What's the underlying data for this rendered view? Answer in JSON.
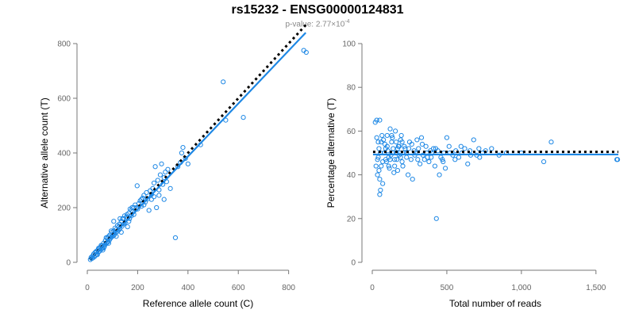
{
  "title": "rs15232 - ENSG00000124831",
  "subtitle": {
    "prefix": "p-value: 2.77×10",
    "exponent": "-4"
  },
  "chart_data": [
    {
      "type": "scatter",
      "xlabel": "Reference allele count (C)",
      "ylabel": "Alternative allele count (T)",
      "xlim": [
        0,
        880
      ],
      "ylim": [
        0,
        800
      ],
      "xticks": [
        0,
        200,
        400,
        600,
        800
      ],
      "yticks": [
        0,
        200,
        400,
        600,
        800
      ],
      "xtick_labels": [
        "0",
        "200",
        "400",
        "600",
        "800"
      ],
      "ytick_labels": [
        "0",
        "200",
        "400",
        "600",
        "800"
      ],
      "fit_line": [
        [
          10,
          10
        ],
        [
          868,
          840
        ]
      ],
      "reference_line": [
        [
          10,
          10
        ],
        [
          868,
          868
        ]
      ],
      "points": [
        [
          12,
          10
        ],
        [
          15,
          18
        ],
        [
          18,
          14
        ],
        [
          20,
          22
        ],
        [
          22,
          16
        ],
        [
          25,
          30
        ],
        [
          28,
          20
        ],
        [
          30,
          35
        ],
        [
          33,
          26
        ],
        [
          35,
          40
        ],
        [
          38,
          30
        ],
        [
          40,
          28
        ],
        [
          42,
          45
        ],
        [
          45,
          38
        ],
        [
          48,
          50
        ],
        [
          50,
          42
        ],
        [
          52,
          55
        ],
        [
          55,
          48
        ],
        [
          58,
          60
        ],
        [
          60,
          52
        ],
        [
          62,
          45
        ],
        [
          65,
          70
        ],
        [
          68,
          58
        ],
        [
          70,
          65
        ],
        [
          72,
          80
        ],
        [
          75,
          68
        ],
        [
          78,
          72
        ],
        [
          80,
          90
        ],
        [
          82,
          75
        ],
        [
          85,
          95
        ],
        [
          88,
          82
        ],
        [
          90,
          100
        ],
        [
          92,
          88
        ],
        [
          95,
          92
        ],
        [
          98,
          110
        ],
        [
          100,
          95
        ],
        [
          105,
          115
        ],
        [
          108,
          102
        ],
        [
          110,
          125
        ],
        [
          112,
          108
        ],
        [
          115,
          120
        ],
        [
          118,
          112
        ],
        [
          120,
          135
        ],
        [
          125,
          118
        ],
        [
          128,
          140
        ],
        [
          130,
          125
        ],
        [
          135,
          150
        ],
        [
          138,
          132
        ],
        [
          140,
          160
        ],
        [
          145,
          140
        ],
        [
          148,
          170
        ],
        [
          150,
          145
        ],
        [
          155,
          165
        ],
        [
          158,
          175
        ],
        [
          160,
          130
        ],
        [
          165,
          180
        ],
        [
          168,
          160
        ],
        [
          170,
          195
        ],
        [
          175,
          170
        ],
        [
          178,
          200
        ],
        [
          180,
          185
        ],
        [
          185,
          175
        ],
        [
          190,
          210
        ],
        [
          195,
          200
        ],
        [
          198,
          280
        ],
        [
          200,
          195
        ],
        [
          205,
          215
        ],
        [
          210,
          225
        ],
        [
          215,
          205
        ],
        [
          220,
          235
        ],
        [
          225,
          245
        ],
        [
          230,
          220
        ],
        [
          235,
          255
        ],
        [
          240,
          232
        ],
        [
          245,
          190
        ],
        [
          250,
          262
        ],
        [
          255,
          248
        ],
        [
          260,
          270
        ],
        [
          265,
          240
        ],
        [
          270,
          350
        ],
        [
          275,
          200
        ],
        [
          280,
          300
        ],
        [
          285,
          265
        ],
        [
          290,
          320
        ],
        [
          295,
          360
        ],
        [
          300,
          285
        ],
        [
          305,
          310
        ],
        [
          310,
          330
        ],
        [
          315,
          295
        ],
        [
          320,
          340
        ],
        [
          330,
          270
        ],
        [
          350,
          90
        ],
        [
          360,
          350
        ],
        [
          370,
          365
        ],
        [
          375,
          400
        ],
        [
          380,
          420
        ],
        [
          390,
          380
        ],
        [
          400,
          360
        ],
        [
          450,
          430
        ],
        [
          540,
          660
        ],
        [
          550,
          520
        ],
        [
          620,
          530
        ],
        [
          860,
          775
        ],
        [
          870,
          768
        ],
        [
          35,
          36
        ],
        [
          45,
          52
        ],
        [
          55,
          62
        ],
        [
          65,
          52
        ],
        [
          75,
          90
        ],
        [
          85,
          70
        ],
        [
          95,
          115
        ],
        [
          105,
          98
        ],
        [
          125,
          130
        ],
        [
          135,
          110
        ],
        [
          145,
          160
        ],
        [
          165,
          150
        ],
        [
          175,
          190
        ],
        [
          185,
          200
        ],
        [
          215,
          230
        ],
        [
          225,
          210
        ],
        [
          255,
          230
        ],
        [
          265,
          290
        ],
        [
          285,
          245
        ],
        [
          305,
          230
        ],
        [
          105,
          150
        ],
        [
          115,
          95
        ],
        [
          130,
          160
        ]
      ]
    },
    {
      "type": "scatter",
      "xlabel": "Total number of reads",
      "ylabel": "Percentage alternative (T)",
      "xlim": [
        0,
        1650
      ],
      "ylim": [
        0,
        100
      ],
      "xticks": [
        0,
        500,
        1000,
        1500
      ],
      "yticks": [
        0,
        20,
        40,
        60,
        80,
        100
      ],
      "xtick_labels": [
        "0",
        "500",
        "1,000",
        "1,500"
      ],
      "ytick_labels": [
        "0",
        "20",
        "40",
        "60",
        "80",
        "100"
      ],
      "fit_line": [
        [
          5,
          49.3
        ],
        [
          1650,
          49.3
        ]
      ],
      "reference_line": [
        [
          5,
          50.5
        ],
        [
          1650,
          50.5
        ]
      ],
      "points": [
        [
          20,
          64
        ],
        [
          30,
          65
        ],
        [
          40,
          48
        ],
        [
          50,
          65
        ],
        [
          60,
          55
        ],
        [
          45,
          42
        ],
        [
          35,
          40
        ],
        [
          55,
          33
        ],
        [
          50,
          31
        ],
        [
          70,
          46
        ],
        [
          80,
          50
        ],
        [
          90,
          52
        ],
        [
          100,
          58
        ],
        [
          110,
          48
        ],
        [
          120,
          61
        ],
        [
          130,
          55
        ],
        [
          140,
          52
        ],
        [
          150,
          44
        ],
        [
          160,
          50
        ],
        [
          170,
          52
        ],
        [
          180,
          49
        ],
        [
          190,
          56
        ],
        [
          200,
          46
        ],
        [
          210,
          50
        ],
        [
          220,
          52
        ],
        [
          230,
          48
        ],
        [
          240,
          40
        ],
        [
          250,
          55
        ],
        [
          260,
          47
        ],
        [
          270,
          38
        ],
        [
          280,
          51
        ],
        [
          290,
          50
        ],
        [
          300,
          56
        ],
        [
          310,
          52
        ],
        [
          320,
          45
        ],
        [
          330,
          57
        ],
        [
          340,
          49
        ],
        [
          350,
          47
        ],
        [
          360,
          53
        ],
        [
          370,
          48
        ],
        [
          380,
          46
        ],
        [
          390,
          51
        ],
        [
          400,
          50
        ],
        [
          410,
          52
        ],
        [
          420,
          44
        ],
        [
          430,
          20
        ],
        [
          440,
          51
        ],
        [
          450,
          40
        ],
        [
          460,
          48
        ],
        [
          470,
          47
        ],
        [
          480,
          50
        ],
        [
          490,
          43
        ],
        [
          500,
          57
        ],
        [
          520,
          50
        ],
        [
          540,
          49
        ],
        [
          560,
          51
        ],
        [
          580,
          48
        ],
        [
          600,
          50
        ],
        [
          620,
          52
        ],
        [
          640,
          45
        ],
        [
          660,
          49
        ],
        [
          680,
          56
        ],
        [
          700,
          49
        ],
        [
          720,
          48
        ],
        [
          740,
          50
        ],
        [
          760,
          51
        ],
        [
          800,
          52
        ],
        [
          850,
          49
        ],
        [
          900,
          50
        ],
        [
          1000,
          50
        ],
        [
          1150,
          46
        ],
        [
          1200,
          55
        ],
        [
          1640,
          47
        ],
        [
          1645,
          47
        ],
        [
          25,
          44
        ],
        [
          35,
          47
        ],
        [
          45,
          52
        ],
        [
          55,
          50
        ],
        [
          65,
          58
        ],
        [
          75,
          56
        ],
        [
          85,
          54
        ],
        [
          95,
          46
        ],
        [
          105,
          51
        ],
        [
          115,
          43
        ],
        [
          125,
          49
        ],
        [
          135,
          57
        ],
        [
          145,
          41
        ],
        [
          155,
          60
        ],
        [
          165,
          47
        ],
        [
          175,
          53
        ],
        [
          185,
          50
        ],
        [
          195,
          58
        ],
        [
          205,
          44
        ],
        [
          215,
          53
        ],
        [
          230,
          50
        ],
        [
          245,
          52
        ],
        [
          265,
          54
        ],
        [
          285,
          49
        ],
        [
          305,
          47
        ],
        [
          335,
          54
        ],
        [
          365,
          50
        ],
        [
          395,
          48
        ],
        [
          425,
          52
        ],
        [
          475,
          46
        ],
        [
          515,
          53
        ],
        [
          555,
          47
        ],
        [
          595,
          53
        ],
        [
          655,
          51
        ],
        [
          715,
          52
        ],
        [
          30,
          57
        ],
        [
          40,
          55
        ],
        [
          50,
          38
        ],
        [
          60,
          44
        ],
        [
          70,
          36
        ],
        [
          80,
          50
        ],
        [
          90,
          47
        ],
        [
          100,
          53
        ],
        [
          110,
          44
        ],
        [
          120,
          47
        ],
        [
          130,
          58
        ],
        [
          140,
          50
        ],
        [
          150,
          47
        ],
        [
          160,
          55
        ],
        [
          170,
          42
        ],
        [
          180,
          53
        ],
        [
          190,
          48
        ],
        [
          200,
          55
        ]
      ]
    }
  ]
}
